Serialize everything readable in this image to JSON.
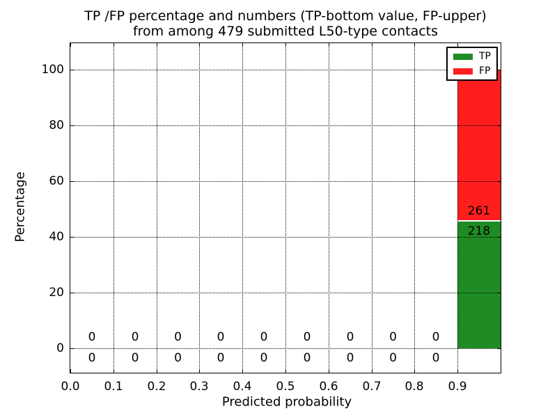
{
  "chart_data": {
    "type": "bar",
    "stacked": true,
    "title_lines": [
      "TP /FP percentage and numbers (TP-bottom value, FP-upper)",
      "from among 479 submitted L50-type contacts"
    ],
    "xlabel": "Predicted probability",
    "ylabel": "Percentage",
    "total_contacts": 479,
    "xlim": [
      0.0,
      1.0
    ],
    "ylim_labeled": [
      0,
      100
    ],
    "grid": "dotted both axes, drawn above bars",
    "bin_width": 0.1,
    "bin_starts": [
      0.0,
      0.1,
      0.2,
      0.3,
      0.4,
      0.5,
      0.6,
      0.7,
      0.8,
      0.9
    ],
    "x_ticks": [
      {
        "value": 0.0,
        "label": "0.0"
      },
      {
        "value": 0.1,
        "label": "0.1"
      },
      {
        "value": 0.2,
        "label": "0.2"
      },
      {
        "value": 0.3,
        "label": "0.3"
      },
      {
        "value": 0.4,
        "label": "0.4"
      },
      {
        "value": 0.5,
        "label": "0.5"
      },
      {
        "value": 0.6,
        "label": "0.6"
      },
      {
        "value": 0.7,
        "label": "0.7"
      },
      {
        "value": 0.8,
        "label": "0.8"
      },
      {
        "value": 0.9,
        "label": "0.9"
      }
    ],
    "y_ticks": [
      0,
      20,
      40,
      60,
      80,
      100
    ],
    "series": [
      {
        "name": "TP",
        "color": "#1f8b24",
        "values": [
          0,
          0,
          0,
          0,
          0,
          0,
          0,
          0,
          0,
          218
        ]
      },
      {
        "name": "FP",
        "color": "#ff1e1e",
        "values": [
          0,
          0,
          0,
          0,
          0,
          0,
          0,
          0,
          0,
          261
        ]
      }
    ],
    "bar_percentages": {
      "TP": 45.5,
      "FP": 54.5
    },
    "legend": {
      "position": "upper right",
      "entries": [
        {
          "label": "TP",
          "color": "#1f8b24"
        },
        {
          "label": "FP",
          "color": "#ff1e1e"
        }
      ]
    }
  }
}
